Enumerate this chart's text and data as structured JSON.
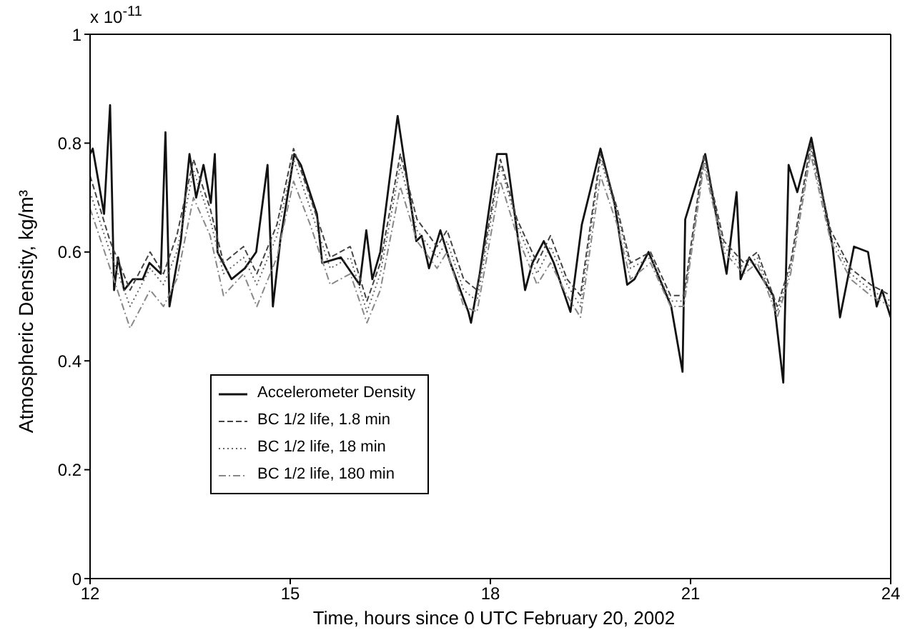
{
  "chart_data": {
    "type": "line",
    "xlabel": "Time, hours since 0 UTC February 20, 2002",
    "ylabel": "Atmospheric Density, kg/m³",
    "annotations": [
      "x 10$^{-11}$"
    ],
    "xlim": [
      12,
      24
    ],
    "xticks": [
      12,
      15,
      18,
      21,
      24
    ],
    "ylim": [
      0,
      1
    ],
    "yticks": [
      0,
      0.2,
      0.4,
      0.6,
      0.8,
      1
    ],
    "grid": false,
    "legend": "bottom left",
    "marker": "none",
    "series": [
      {
        "name": "Accelerometer Density",
        "color": "#111111",
        "line_style": "solid",
        "x": [
          12.0,
          12.04,
          12.21,
          12.3,
          12.36,
          12.42,
          12.51,
          12.64,
          12.79,
          12.89,
          13.06,
          13.13,
          13.19,
          13.36,
          13.49,
          13.59,
          13.7,
          13.81,
          13.87,
          13.91,
          14.12,
          14.32,
          14.49,
          14.66,
          14.74,
          14.85,
          15.06,
          15.16,
          15.4,
          15.48,
          15.76,
          16.04,
          16.14,
          16.23,
          16.35,
          16.61,
          16.72,
          16.89,
          16.97,
          17.08,
          17.25,
          17.4,
          17.67,
          17.71,
          17.84,
          18.1,
          18.24,
          18.52,
          18.63,
          18.8,
          18.95,
          19.2,
          19.37,
          19.65,
          19.86,
          20.05,
          20.16,
          20.37,
          20.71,
          20.88,
          20.92,
          21.22,
          21.54,
          21.69,
          21.75,
          21.88,
          22.24,
          22.39,
          22.47,
          22.6,
          22.81,
          23.13,
          23.24,
          23.45,
          23.66,
          23.79,
          23.87,
          24.0
        ],
        "values": [
          0.78,
          0.79,
          0.67,
          0.87,
          0.53,
          0.59,
          0.53,
          0.55,
          0.55,
          0.58,
          0.56,
          0.82,
          0.5,
          0.62,
          0.78,
          0.7,
          0.76,
          0.69,
          0.78,
          0.6,
          0.55,
          0.57,
          0.6,
          0.76,
          0.5,
          0.62,
          0.78,
          0.76,
          0.67,
          0.58,
          0.59,
          0.54,
          0.64,
          0.55,
          0.6,
          0.85,
          0.76,
          0.62,
          0.63,
          0.57,
          0.64,
          0.58,
          0.49,
          0.47,
          0.56,
          0.78,
          0.78,
          0.53,
          0.58,
          0.62,
          0.58,
          0.49,
          0.65,
          0.79,
          0.69,
          0.54,
          0.55,
          0.6,
          0.5,
          0.38,
          0.66,
          0.78,
          0.56,
          0.71,
          0.55,
          0.59,
          0.52,
          0.36,
          0.76,
          0.71,
          0.81,
          0.61,
          0.48,
          0.61,
          0.6,
          0.5,
          0.53,
          0.48
        ]
      },
      {
        "name": "BC 1/2 life, 1.8 min",
        "color": "#444444",
        "line_style": "dashed",
        "x": [
          12.0,
          12.3,
          12.6,
          12.9,
          13.1,
          13.3,
          13.55,
          13.8,
          14.0,
          14.3,
          14.5,
          14.8,
          15.05,
          15.3,
          15.6,
          15.9,
          16.15,
          16.35,
          16.65,
          16.9,
          17.2,
          17.35,
          17.6,
          17.8,
          18.15,
          18.4,
          18.7,
          18.9,
          19.15,
          19.35,
          19.65,
          19.9,
          20.1,
          20.4,
          20.7,
          20.9,
          21.2,
          21.5,
          21.8,
          22.0,
          22.3,
          22.5,
          22.8,
          23.1,
          23.4,
          23.7,
          24.0
        ],
        "values": [
          0.74,
          0.62,
          0.53,
          0.6,
          0.56,
          0.63,
          0.77,
          0.68,
          0.58,
          0.61,
          0.56,
          0.65,
          0.79,
          0.7,
          0.59,
          0.61,
          0.51,
          0.58,
          0.78,
          0.66,
          0.61,
          0.64,
          0.55,
          0.53,
          0.77,
          0.66,
          0.58,
          0.63,
          0.55,
          0.52,
          0.78,
          0.68,
          0.58,
          0.6,
          0.52,
          0.52,
          0.78,
          0.62,
          0.58,
          0.6,
          0.5,
          0.58,
          0.8,
          0.64,
          0.57,
          0.54,
          0.52
        ]
      },
      {
        "name": "BC 1/2 life, 18 min",
        "color": "#666666",
        "line_style": "dotted",
        "x": [
          12.0,
          12.3,
          12.6,
          12.9,
          13.1,
          13.3,
          13.55,
          13.8,
          14.0,
          14.3,
          14.5,
          14.8,
          15.05,
          15.3,
          15.6,
          15.9,
          16.15,
          16.35,
          16.65,
          16.9,
          17.2,
          17.35,
          17.6,
          17.8,
          18.15,
          18.4,
          18.7,
          18.9,
          19.15,
          19.35,
          19.65,
          19.9,
          20.1,
          20.4,
          20.7,
          20.9,
          21.2,
          21.5,
          21.8,
          22.0,
          22.3,
          22.5,
          22.8,
          23.1,
          23.4,
          23.7,
          24.0
        ],
        "values": [
          0.71,
          0.6,
          0.5,
          0.57,
          0.54,
          0.6,
          0.75,
          0.66,
          0.56,
          0.59,
          0.54,
          0.63,
          0.77,
          0.68,
          0.57,
          0.59,
          0.49,
          0.56,
          0.76,
          0.64,
          0.59,
          0.62,
          0.53,
          0.51,
          0.76,
          0.65,
          0.56,
          0.61,
          0.54,
          0.5,
          0.77,
          0.67,
          0.57,
          0.59,
          0.51,
          0.51,
          0.77,
          0.61,
          0.57,
          0.59,
          0.49,
          0.57,
          0.79,
          0.63,
          0.56,
          0.53,
          0.51
        ]
      },
      {
        "name": "BC 1/2 life, 180 min",
        "color": "#888888",
        "line_style": "dashdot",
        "x": [
          12.0,
          12.3,
          12.6,
          12.9,
          13.1,
          13.3,
          13.55,
          13.8,
          14.0,
          14.3,
          14.5,
          14.8,
          15.05,
          15.3,
          15.6,
          15.9,
          16.15,
          16.35,
          16.65,
          16.9,
          17.2,
          17.35,
          17.6,
          17.8,
          18.15,
          18.4,
          18.7,
          18.9,
          19.15,
          19.35,
          19.65,
          19.9,
          20.1,
          20.4,
          20.7,
          20.9,
          21.2,
          21.5,
          21.8,
          22.0,
          22.3,
          22.5,
          22.8,
          23.1,
          23.4,
          23.7,
          24.0
        ],
        "values": [
          0.68,
          0.57,
          0.46,
          0.53,
          0.5,
          0.55,
          0.7,
          0.63,
          0.52,
          0.56,
          0.5,
          0.59,
          0.73,
          0.65,
          0.54,
          0.56,
          0.47,
          0.53,
          0.72,
          0.62,
          0.57,
          0.6,
          0.5,
          0.49,
          0.73,
          0.63,
          0.54,
          0.58,
          0.52,
          0.48,
          0.74,
          0.65,
          0.55,
          0.58,
          0.5,
          0.5,
          0.76,
          0.6,
          0.56,
          0.58,
          0.48,
          0.56,
          0.78,
          0.62,
          0.55,
          0.52,
          0.5
        ]
      }
    ]
  }
}
